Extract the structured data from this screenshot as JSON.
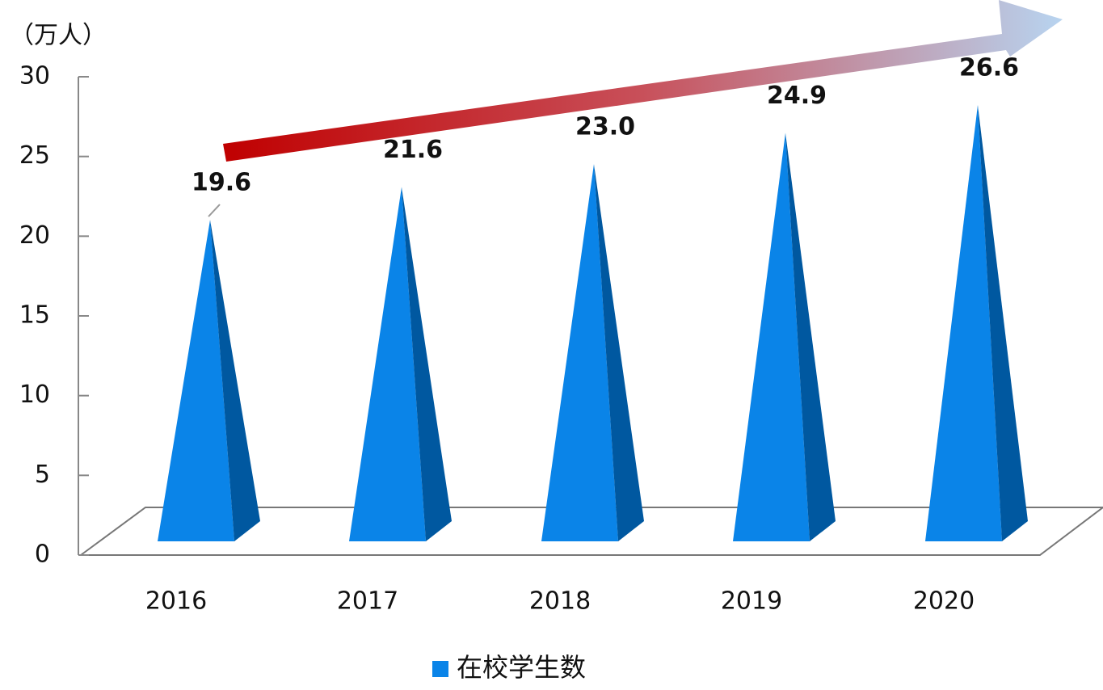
{
  "chart_data": {
    "type": "pyramid",
    "y_label": "（万人）",
    "categories": [
      "2016",
      "2017",
      "2018",
      "2019",
      "2020"
    ],
    "series": [
      {
        "name": "在校学生数",
        "color": "#0a84e8",
        "values": [
          19.6,
          21.6,
          23.0,
          24.9,
          26.6
        ],
        "value_labels": [
          "19.6",
          "21.6",
          "23.0",
          "24.9",
          "26.6"
        ]
      }
    ],
    "ylim": [
      0,
      30
    ],
    "yticks": [
      0,
      5,
      10,
      15,
      20,
      25,
      30
    ]
  }
}
